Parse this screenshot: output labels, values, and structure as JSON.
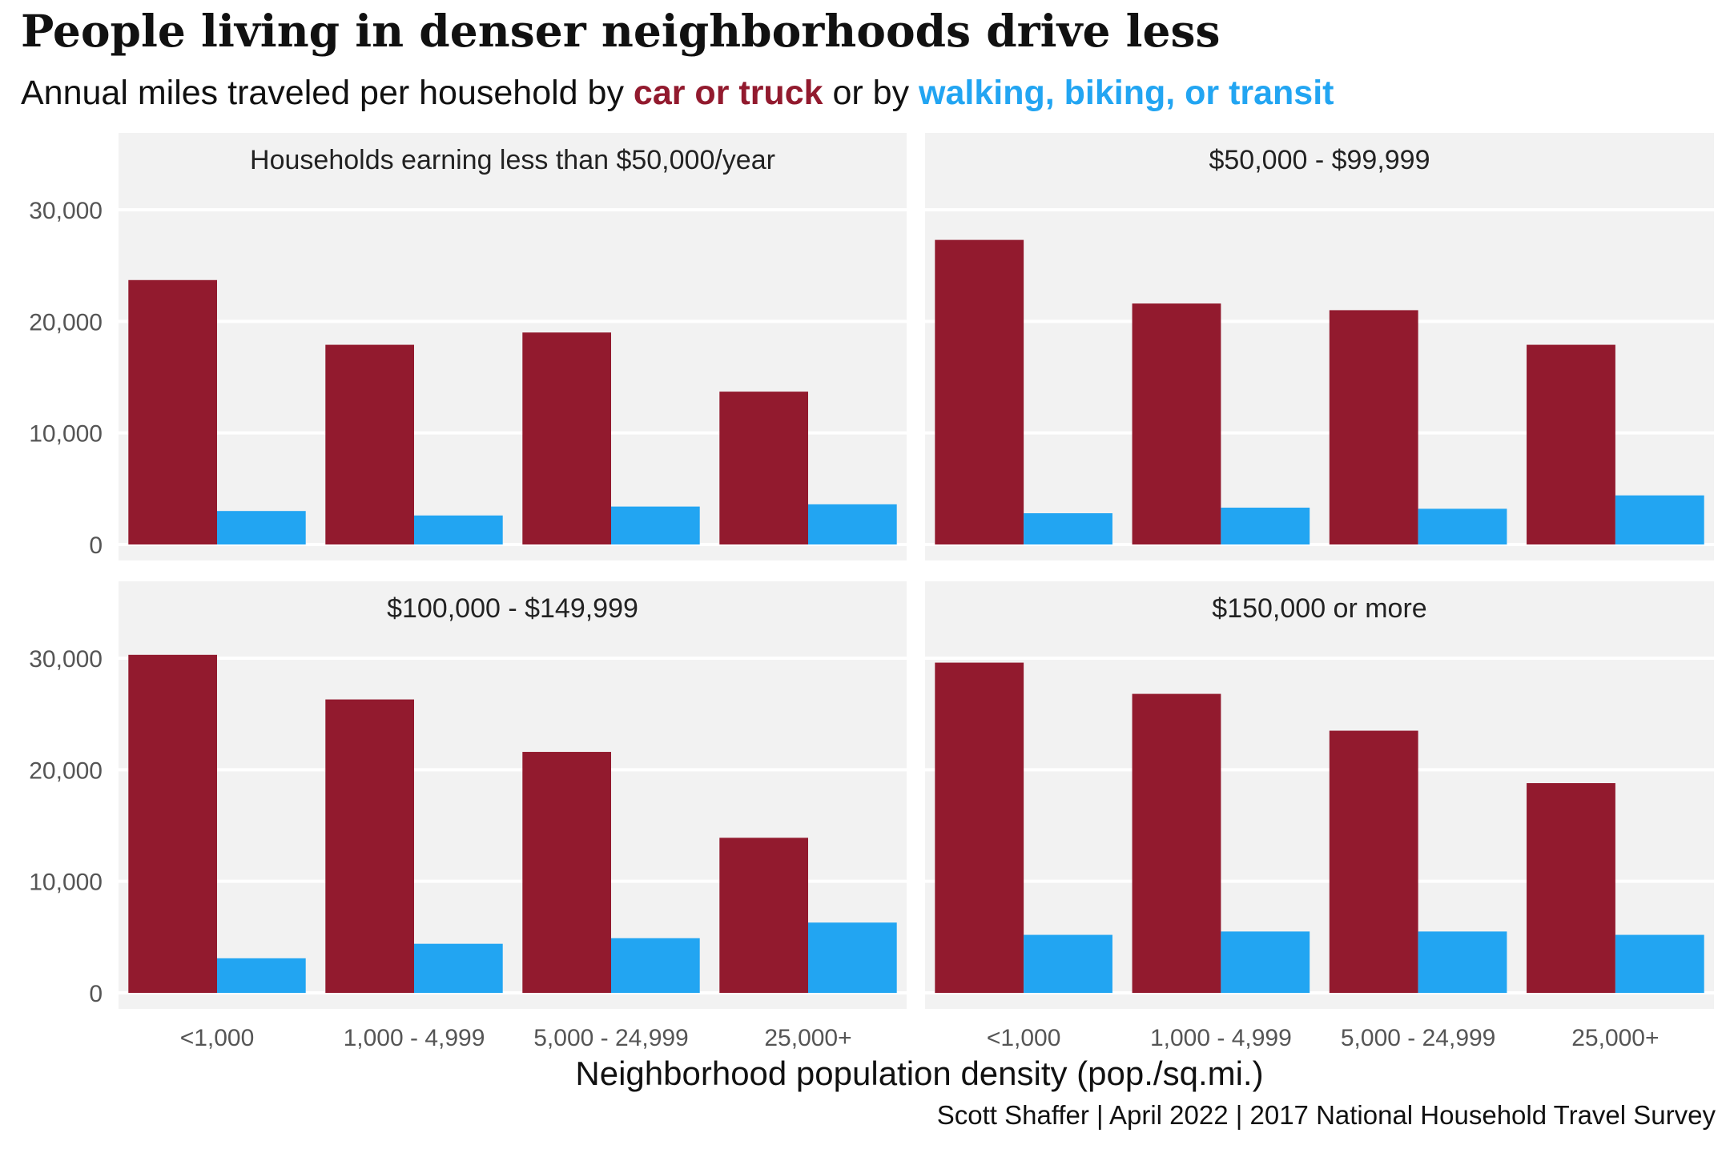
{
  "title": "People living in denser neighborhoods drive less",
  "subtitle": {
    "part1": "Annual miles traveled per household by ",
    "car": "car or truck",
    "part2": " or by ",
    "walk": "walking, biking, or transit"
  },
  "caption": "Scott Shaffer | April 2022 | 2017 National Household Travel Survey",
  "colors": {
    "car": "#921a2e",
    "walk": "#22a5f2",
    "panel_bg": "#f2f2f2",
    "grid": "#ffffff"
  },
  "chart_data": {
    "type": "bar",
    "xlabel": "Neighborhood population density (pop./sq.mi.)",
    "ylabel": "",
    "ylim": [
      0,
      35000
    ],
    "yticks": [
      0,
      10000,
      20000,
      30000
    ],
    "ytick_labels": [
      "0",
      "10,000",
      "20,000",
      "30,000"
    ],
    "categories": [
      "<1,000",
      "1,000 - 4,999",
      "5,000 - 24,999",
      "25,000+"
    ],
    "series_names": [
      "car or truck",
      "walking, biking, or transit"
    ],
    "grid": true,
    "panels": [
      {
        "title": "Households earning less than $50,000/year",
        "series": [
          {
            "name": "car or truck",
            "values": [
              23700,
              17900,
              19000,
              13700
            ]
          },
          {
            "name": "walking, biking, or transit",
            "values": [
              3000,
              2600,
              3400,
              3600
            ]
          }
        ]
      },
      {
        "title": "$50,000 - $99,999",
        "series": [
          {
            "name": "car or truck",
            "values": [
              27300,
              21600,
              21000,
              17900
            ]
          },
          {
            "name": "walking, biking, or transit",
            "values": [
              2800,
              3300,
              3200,
              4400
            ]
          }
        ]
      },
      {
        "title": "$100,000 - $149,999",
        "series": [
          {
            "name": "car or truck",
            "values": [
              30300,
              26300,
              21600,
              13900
            ]
          },
          {
            "name": "walking, biking, or transit",
            "values": [
              3100,
              4400,
              4900,
              6300
            ]
          }
        ]
      },
      {
        "title": "$150,000 or more",
        "series": [
          {
            "name": "car or truck",
            "values": [
              29600,
              26800,
              23500,
              18800
            ]
          },
          {
            "name": "walking, biking, or transit",
            "values": [
              5200,
              5500,
              5500,
              5200
            ]
          }
        ]
      }
    ]
  }
}
